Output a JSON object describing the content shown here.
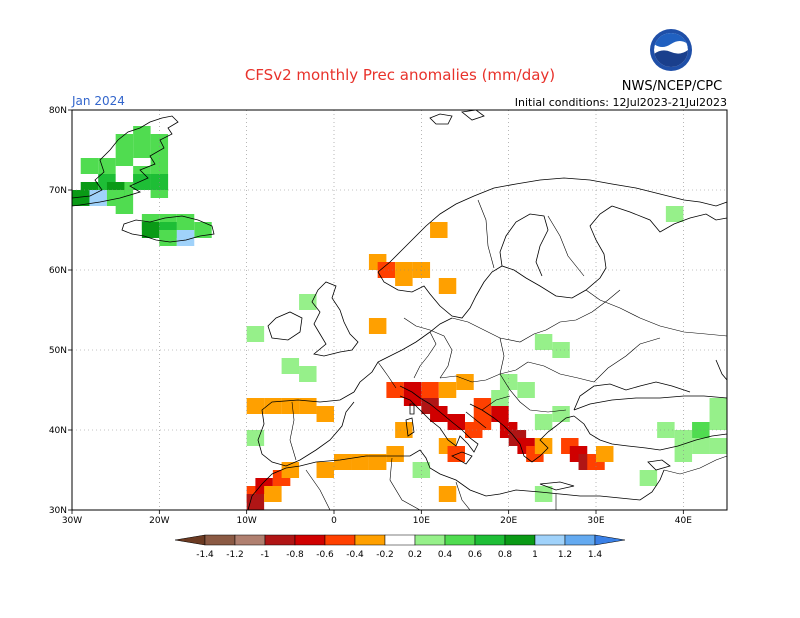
{
  "title": "CFSv2 monthly Prec anomalies (mm/day)",
  "target_month": "Jan 2024",
  "initial_conditions": "Initial conditions: 12Jul2023-21Jul2023",
  "org": "NWS/NCEP/CPC",
  "logo_text": "NOAA",
  "chart_data": {
    "type": "heatmap",
    "title": "CFSv2 monthly Prec anomalies (mm/day)",
    "xlim": [
      -30,
      45
    ],
    "ylim": [
      30,
      80
    ],
    "xticks": [
      {
        "value": -30,
        "label": "30W"
      },
      {
        "value": -20,
        "label": "20W"
      },
      {
        "value": -10,
        "label": "10W"
      },
      {
        "value": 0,
        "label": "0"
      },
      {
        "value": 10,
        "label": "10E"
      },
      {
        "value": 20,
        "label": "20E"
      },
      {
        "value": 30,
        "label": "30E"
      },
      {
        "value": 40,
        "label": "40E"
      }
    ],
    "yticks": [
      {
        "value": 30,
        "label": "30N"
      },
      {
        "value": 40,
        "label": "40N"
      },
      {
        "value": 50,
        "label": "50N"
      },
      {
        "value": 60,
        "label": "60N"
      },
      {
        "value": 70,
        "label": "70N"
      },
      {
        "value": 80,
        "label": "80N"
      }
    ],
    "grid": true,
    "colorbar": {
      "levels": [
        -1.4,
        -1.2,
        -1,
        -0.8,
        -0.6,
        -0.4,
        -0.2,
        0.2,
        0.4,
        0.6,
        0.8,
        1,
        1.2,
        1.4
      ],
      "labels": [
        "-1.4",
        "-1.2",
        "-1",
        "-0.8",
        "-0.6",
        "-0.4",
        "-0.2",
        "0.2",
        "0.4",
        "0.6",
        "0.8",
        "1",
        "1.2",
        "1.4"
      ],
      "colors": [
        "#6b3a22",
        "#8b5a44",
        "#b08070",
        "#b01515",
        "#d00000",
        "#ff4000",
        "#ffa000",
        "#ffffff",
        "#96f08a",
        "#50dc50",
        "#1ebe36",
        "#0a9a16",
        "#a0d2fa",
        "#64aaf0",
        "#3a80e6"
      ]
    },
    "cells": [
      {
        "lon": -28,
        "lat": 73,
        "v": 0.5
      },
      {
        "lon": -26,
        "lat": 73,
        "v": 0.5
      },
      {
        "lon": -24,
        "lat": 74,
        "v": 0.5
      },
      {
        "lon": -22,
        "lat": 75,
        "v": 0.5
      },
      {
        "lon": -20,
        "lat": 76,
        "v": 0.5
      },
      {
        "lon": -22,
        "lat": 77,
        "v": 0.5
      },
      {
        "lon": -24,
        "lat": 76,
        "v": 0.5
      },
      {
        "lon": -20,
        "lat": 74,
        "v": 0.5
      },
      {
        "lon": -22,
        "lat": 72,
        "v": 0.5
      },
      {
        "lon": -20,
        "lat": 72,
        "v": 0.5
      },
      {
        "lon": -20,
        "lat": 70,
        "v": 0.5
      },
      {
        "lon": -24,
        "lat": 70,
        "v": 0.5
      },
      {
        "lon": -22,
        "lat": 71,
        "v": 0.7
      },
      {
        "lon": -20,
        "lat": 71,
        "v": 0.7
      },
      {
        "lon": -26,
        "lat": 71,
        "v": 0.7
      },
      {
        "lon": -28,
        "lat": 70,
        "v": 0.9
      },
      {
        "lon": -29,
        "lat": 69,
        "v": 0.9
      },
      {
        "lon": -25,
        "lat": 70,
        "v": 0.9
      },
      {
        "lon": -27,
        "lat": 69,
        "v": 1.1
      },
      {
        "lon": -25,
        "lat": 69,
        "v": 0.5
      },
      {
        "lon": -24,
        "lat": 68,
        "v": 0.5
      },
      {
        "lon": -21,
        "lat": 66,
        "v": 0.5
      },
      {
        "lon": -19,
        "lat": 66,
        "v": 0.5
      },
      {
        "lon": -17,
        "lat": 66,
        "v": 0.5
      },
      {
        "lon": -15,
        "lat": 65,
        "v": 0.5
      },
      {
        "lon": -19,
        "lat": 65,
        "v": 0.7
      },
      {
        "lon": -21,
        "lat": 65,
        "v": 0.9
      },
      {
        "lon": -19,
        "lat": 64,
        "v": 0.5
      },
      {
        "lon": -17,
        "lat": 64,
        "v": 1.1
      },
      {
        "lon": 5,
        "lat": 61,
        "v": -0.3
      },
      {
        "lon": 6,
        "lat": 60,
        "v": -0.5
      },
      {
        "lon": 8,
        "lat": 60,
        "v": -0.3
      },
      {
        "lon": 10,
        "lat": 60,
        "v": -0.3
      },
      {
        "lon": 8,
        "lat": 59,
        "v": -0.3
      },
      {
        "lon": 13,
        "lat": 58,
        "v": -0.3
      },
      {
        "lon": 5,
        "lat": 53,
        "v": -0.3
      },
      {
        "lon": 12,
        "lat": 65,
        "v": -0.3
      },
      {
        "lon": -9,
        "lat": 43,
        "v": -0.3
      },
      {
        "lon": -7,
        "lat": 43,
        "v": -0.3
      },
      {
        "lon": -5,
        "lat": 43,
        "v": -0.3
      },
      {
        "lon": -3,
        "lat": 43,
        "v": -0.3
      },
      {
        "lon": -1,
        "lat": 42,
        "v": -0.3
      },
      {
        "lon": 7,
        "lat": 45,
        "v": -0.5
      },
      {
        "lon": 9,
        "lat": 45,
        "v": -0.7
      },
      {
        "lon": 11,
        "lat": 45,
        "v": -0.5
      },
      {
        "lon": 13,
        "lat": 45,
        "v": -0.3
      },
      {
        "lon": 15,
        "lat": 46,
        "v": -0.3
      },
      {
        "lon": 9,
        "lat": 44,
        "v": -0.7
      },
      {
        "lon": 11,
        "lat": 43,
        "v": -0.9
      },
      {
        "lon": 12,
        "lat": 42,
        "v": -0.7
      },
      {
        "lon": 14,
        "lat": 41,
        "v": -0.7
      },
      {
        "lon": 16,
        "lat": 40,
        "v": -0.5
      },
      {
        "lon": 17,
        "lat": 41,
        "v": -0.5
      },
      {
        "lon": 17,
        "lat": 43,
        "v": -0.5
      },
      {
        "lon": 19,
        "lat": 42,
        "v": -0.7
      },
      {
        "lon": 20,
        "lat": 40,
        "v": -0.7
      },
      {
        "lon": 21,
        "lat": 39,
        "v": -0.9
      },
      {
        "lon": 22,
        "lat": 38,
        "v": -0.7
      },
      {
        "lon": 23,
        "lat": 37,
        "v": -0.5
      },
      {
        "lon": 24,
        "lat": 38,
        "v": -0.3
      },
      {
        "lon": 27,
        "lat": 38,
        "v": -0.5
      },
      {
        "lon": 28,
        "lat": 37,
        "v": -0.7
      },
      {
        "lon": 29,
        "lat": 36,
        "v": -0.9
      },
      {
        "lon": 30,
        "lat": 36,
        "v": -0.5
      },
      {
        "lon": 31,
        "lat": 37,
        "v": -0.3
      },
      {
        "lon": 13,
        "lat": 38,
        "v": -0.3
      },
      {
        "lon": 14,
        "lat": 37,
        "v": -0.5
      },
      {
        "lon": 8,
        "lat": 40,
        "v": -0.3
      },
      {
        "lon": 1,
        "lat": 36,
        "v": -0.3
      },
      {
        "lon": 3,
        "lat": 36,
        "v": -0.3
      },
      {
        "lon": 5,
        "lat": 36,
        "v": -0.3
      },
      {
        "lon": 7,
        "lat": 37,
        "v": -0.3
      },
      {
        "lon": -1,
        "lat": 35,
        "v": -0.3
      },
      {
        "lon": -9,
        "lat": 32,
        "v": -0.5
      },
      {
        "lon": -8,
        "lat": 33,
        "v": -0.7
      },
      {
        "lon": -6,
        "lat": 34,
        "v": -0.5
      },
      {
        "lon": -5,
        "lat": 35,
        "v": -0.3
      },
      {
        "lon": -9,
        "lat": 31,
        "v": -0.9
      },
      {
        "lon": -7,
        "lat": 32,
        "v": -0.3
      },
      {
        "lon": 13,
        "lat": 32,
        "v": -0.3
      },
      {
        "lon": -3,
        "lat": 56,
        "v": 0.3
      },
      {
        "lon": -9,
        "lat": 52,
        "v": 0.3
      },
      {
        "lon": -3,
        "lat": 47,
        "v": 0.3
      },
      {
        "lon": -5,
        "lat": 48,
        "v": 0.3
      },
      {
        "lon": -9,
        "lat": 39,
        "v": 0.3
      },
      {
        "lon": 24,
        "lat": 51,
        "v": 0.3
      },
      {
        "lon": 26,
        "lat": 50,
        "v": 0.3
      },
      {
        "lon": 20,
        "lat": 46,
        "v": 0.3
      },
      {
        "lon": 22,
        "lat": 45,
        "v": 0.3
      },
      {
        "lon": 19,
        "lat": 44,
        "v": 0.3
      },
      {
        "lon": 24,
        "lat": 41,
        "v": 0.3
      },
      {
        "lon": 26,
        "lat": 42,
        "v": 0.3
      },
      {
        "lon": 10,
        "lat": 35,
        "v": 0.3
      },
      {
        "lon": 24,
        "lat": 32,
        "v": 0.3
      },
      {
        "lon": 40,
        "lat": 39,
        "v": 0.3
      },
      {
        "lon": 42,
        "lat": 40,
        "v": 0.5
      },
      {
        "lon": 38,
        "lat": 40,
        "v": 0.3
      },
      {
        "lon": 44,
        "lat": 41,
        "v": 0.3
      },
      {
        "lon": 44,
        "lat": 43,
        "v": 0.3
      },
      {
        "lon": 42,
        "lat": 38,
        "v": 0.3
      },
      {
        "lon": 44,
        "lat": 38,
        "v": 0.3
      },
      {
        "lon": 40,
        "lat": 37,
        "v": 0.3
      },
      {
        "lon": 36,
        "lat": 34,
        "v": 0.3
      },
      {
        "lon": 39,
        "lat": 67,
        "v": 0.3
      }
    ]
  }
}
